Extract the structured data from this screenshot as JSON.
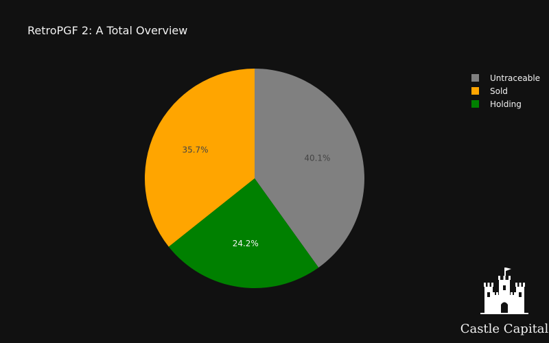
{
  "chart_data": {
    "type": "pie",
    "title": "RetroPGF 2: A Total Overview",
    "slices": [
      {
        "name": "Untraceable",
        "value": 40.1,
        "label": "40.1%",
        "color": "#808080",
        "label_color": "#444444"
      },
      {
        "name": "Holding",
        "value": 24.2,
        "label": "24.2%",
        "color": "#008000",
        "label_color": "#f2f2f2"
      },
      {
        "name": "Sold",
        "value": 35.7,
        "label": "35.7%",
        "color": "#ffa500",
        "label_color": "#444444"
      }
    ],
    "legend": {
      "placement": "top-right",
      "entries": [
        {
          "name": "Untraceable",
          "color": "#808080"
        },
        {
          "name": "Sold",
          "color": "#ffa500"
        },
        {
          "name": "Holding",
          "color": "#008000"
        }
      ]
    },
    "direction": "clockwise",
    "start_angle": "top"
  },
  "branding": {
    "name": "Castle Capital",
    "icon": "castle-icon"
  },
  "theme": {
    "background": "#111111",
    "text": "#f2f2f2"
  }
}
